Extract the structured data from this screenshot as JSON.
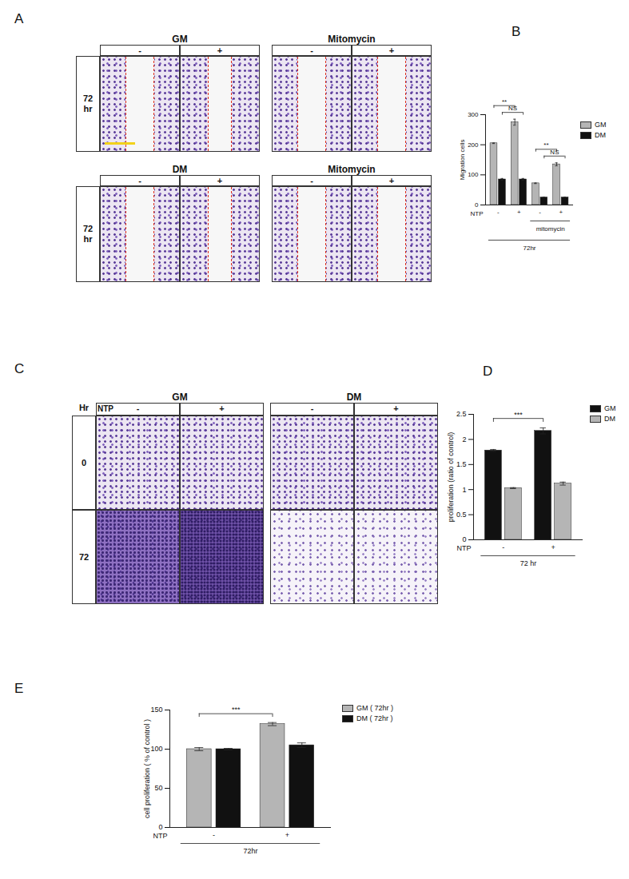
{
  "image_panels": [
    {
      "label": "A",
      "grids": [
        {
          "row_labels": [
            "72 hr"
          ],
          "groups": [
            {
              "title": "GM",
              "columns": [
                "-",
                "+"
              ]
            },
            {
              "title": "Mitomycin",
              "columns": [
                "-",
                "+"
              ]
            }
          ]
        },
        {
          "row_labels": [
            "72 hr"
          ],
          "groups": [
            {
              "title": "DM",
              "columns": [
                "-",
                "+"
              ]
            },
            {
              "title": "Mitomycin",
              "columns": [
                "-",
                "+"
              ]
            }
          ]
        }
      ]
    },
    {
      "label": "C",
      "grids": [
        {
          "header_label": "NTP",
          "row_header": "Hr",
          "row_labels": [
            "0",
            "72"
          ],
          "groups": [
            {
              "title": "GM",
              "columns": [
                "-",
                "+"
              ]
            },
            {
              "title": "DM",
              "columns": [
                "-",
                "+"
              ]
            }
          ]
        }
      ]
    }
  ],
  "chart_data": [
    {
      "type": "bar",
      "panel": "B",
      "ylabel": "Migration cells",
      "xlabel": "NTP",
      "categories": [
        "-",
        "+",
        "-",
        "+"
      ],
      "series": [
        {
          "name": "GM",
          "color": "#b5b5b5",
          "values": [
            205,
            275,
            72,
            135
          ],
          "errors": [
            1,
            10,
            1,
            5
          ]
        },
        {
          "name": "DM",
          "color": "#111111",
          "values": [
            85,
            85,
            25,
            25
          ],
          "errors": [
            3,
            3,
            1,
            1
          ]
        }
      ],
      "xgroups": [
        {
          "label": "mitomycin",
          "from": 2,
          "to": 3
        },
        {
          "label": "72hr",
          "from": 0,
          "to": 3
        }
      ],
      "annotations": [
        {
          "text": "NS",
          "series": "DM",
          "from": 0,
          "to": 1
        },
        {
          "text": "**",
          "series": "GM",
          "from": 0,
          "to": 1
        },
        {
          "text": "NS",
          "series": "DM",
          "from": 2,
          "to": 3
        },
        {
          "text": "**",
          "series": "GM",
          "from": 2,
          "to": 3
        }
      ],
      "ylim": [
        0,
        300
      ],
      "yticks": [
        0,
        100,
        200,
        300
      ],
      "legend": "right"
    },
    {
      "type": "bar",
      "panel": "D",
      "ylabel": "proliferation (ratio of control)",
      "xlabel": "NTP",
      "categories": [
        "-",
        "+"
      ],
      "series": [
        {
          "name": "GM",
          "color": "#111111",
          "values": [
            1.78,
            2.17
          ],
          "errors": [
            0.02,
            0.06
          ]
        },
        {
          "name": "DM",
          "color": "#b5b5b5",
          "values": [
            1.03,
            1.12
          ],
          "errors": [
            0.01,
            0.03
          ]
        }
      ],
      "xgroups": [
        {
          "label": "72 hr",
          "from": 0,
          "to": 1
        }
      ],
      "annotations": [
        {
          "text": "***",
          "series": "GM",
          "from": 0,
          "to": 1
        }
      ],
      "ylim": [
        0,
        2.5
      ],
      "yticks": [
        0,
        0.5,
        1,
        1.5,
        2,
        2.5
      ],
      "legend": "right"
    },
    {
      "type": "bar",
      "panel": "E",
      "ylabel": "cell proliferation ( % of control )",
      "xlabel": "NTP",
      "categories": [
        "-",
        "+"
      ],
      "series": [
        {
          "name": "GM ( 72hr )",
          "color": "#b5b5b5",
          "values": [
            100,
            132
          ],
          "errors": [
            2,
            2
          ]
        },
        {
          "name": "DM ( 72hr )",
          "color": "#111111",
          "values": [
            100,
            105
          ],
          "errors": [
            1,
            3
          ]
        }
      ],
      "xgroups": [
        {
          "label": "72hr",
          "from": 0,
          "to": 1
        }
      ],
      "annotations": [
        {
          "text": "***",
          "series": "GM ( 72hr )",
          "from": 0,
          "to": 1
        }
      ],
      "ylim": [
        0,
        150
      ],
      "yticks": [
        0,
        50,
        100,
        150
      ],
      "legend": "right"
    }
  ]
}
